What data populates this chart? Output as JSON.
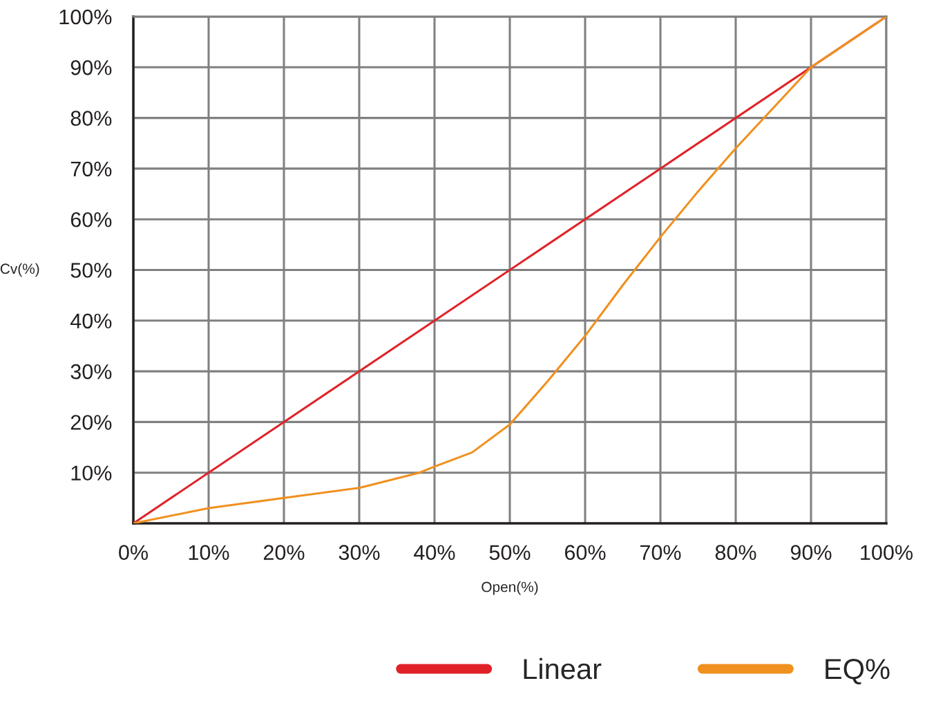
{
  "chart_data": {
    "type": "line",
    "xlabel": "Open(%)",
    "ylabel": "Cv(%)",
    "xlim": [
      0,
      100
    ],
    "ylim": [
      0,
      100
    ],
    "xticks": [
      {
        "value": 0,
        "label": "0%"
      },
      {
        "value": 10,
        "label": "10%"
      },
      {
        "value": 20,
        "label": "20%"
      },
      {
        "value": 30,
        "label": "30%"
      },
      {
        "value": 40,
        "label": "40%"
      },
      {
        "value": 50,
        "label": "50%"
      },
      {
        "value": 60,
        "label": "60%"
      },
      {
        "value": 70,
        "label": "70%"
      },
      {
        "value": 80,
        "label": "80%"
      },
      {
        "value": 90,
        "label": "90%"
      },
      {
        "value": 100,
        "label": "100%"
      }
    ],
    "yticks": [
      {
        "value": 10,
        "label": "10%"
      },
      {
        "value": 20,
        "label": "20%"
      },
      {
        "value": 30,
        "label": "30%"
      },
      {
        "value": 40,
        "label": "40%"
      },
      {
        "value": 50,
        "label": "50%"
      },
      {
        "value": 60,
        "label": "60%"
      },
      {
        "value": 70,
        "label": "70%"
      },
      {
        "value": 80,
        "label": "80%"
      },
      {
        "value": 90,
        "label": "90%"
      },
      {
        "value": 100,
        "label": "100%"
      }
    ],
    "grid": true,
    "legend": "bottom right",
    "series": [
      {
        "name": "Linear",
        "color": "#e02228",
        "x": [
          0,
          100
        ],
        "values": [
          0,
          100
        ]
      },
      {
        "name": "EQ%",
        "color": "#f0901e",
        "x": [
          0,
          10,
          20,
          30,
          38,
          40,
          45,
          50,
          55,
          60,
          65,
          70,
          75,
          80,
          85,
          90,
          95,
          100
        ],
        "values": [
          0,
          3,
          5,
          7,
          10,
          11.2,
          14,
          19.5,
          28,
          37,
          47,
          56.5,
          65.5,
          74,
          82,
          90,
          95,
          100
        ]
      }
    ]
  }
}
